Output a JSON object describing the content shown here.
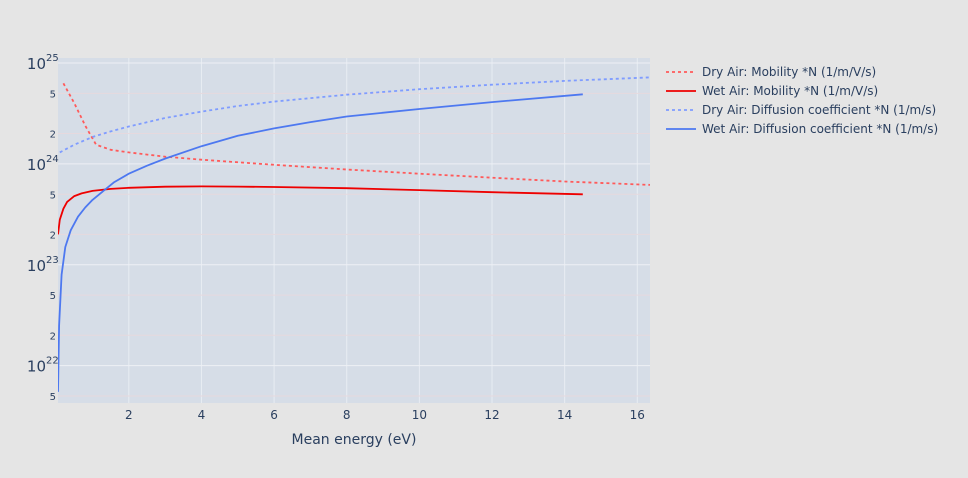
{
  "chart_data": {
    "type": "line",
    "title": "",
    "xlabel": "Mean energy (eV)",
    "ylabel": "",
    "xlim": [
      0.05,
      16.35
    ],
    "ylim_log10": [
      21.63,
      25.05
    ],
    "y_scale": "log",
    "grid": true,
    "legend_position": "top-right",
    "background": "#e5e5e5",
    "plot_bg": "#d6dde7",
    "x_ticks": [
      2,
      4,
      6,
      8,
      10,
      12,
      14,
      16
    ],
    "y_major_ticks": [
      {
        "value": 1e+22,
        "base": "10",
        "exp": "22"
      },
      {
        "value": 1e+23,
        "base": "10",
        "exp": "23"
      },
      {
        "value": 1e+24,
        "base": "10",
        "exp": "24"
      },
      {
        "value": 1e+25,
        "base": "10",
        "exp": "25"
      }
    ],
    "y_minor_ticks": [
      {
        "value": 5e+21,
        "label": "5"
      },
      {
        "value": 2e+22,
        "label": "2"
      },
      {
        "value": 5e+22,
        "label": "5"
      },
      {
        "value": 2e+23,
        "label": "2"
      },
      {
        "value": 5e+23,
        "label": "5"
      },
      {
        "value": 2e+24,
        "label": "2"
      },
      {
        "value": 5e+24,
        "label": "5"
      }
    ],
    "series": [
      {
        "name": "Dry Air: Mobility *N (1/m/V/s)",
        "color": "#ff5a5a",
        "dash": "dot",
        "x": [
          0.2,
          0.5,
          0.8,
          1.1,
          1.5,
          2,
          3,
          4,
          6,
          8,
          10,
          12,
          14,
          16.35
        ],
        "y": [
          6.3e+24,
          4e+24,
          2.4e+24,
          1.55e+24,
          1.38e+24,
          1.3e+24,
          1.18e+24,
          1.1e+24,
          9.8e+23,
          8.8e+23,
          8e+23,
          7.3e+23,
          6.7e+23,
          6.2e+23
        ]
      },
      {
        "name": "Wet Air: Mobility *N (1/m/V/s)",
        "color": "#ee0000",
        "dash": "solid",
        "x": [
          0.05,
          0.1,
          0.2,
          0.3,
          0.5,
          0.7,
          1,
          1.5,
          2,
          3,
          4,
          5,
          6,
          8,
          10,
          12,
          14.5
        ],
        "y": [
          2e+23,
          2.8e+23,
          3.6e+23,
          4.2e+23,
          4.8e+23,
          5.1e+23,
          5.4e+23,
          5.65e+23,
          5.8e+23,
          5.95e+23,
          5.98e+23,
          5.96e+23,
          5.9e+23,
          5.75e+23,
          5.5e+23,
          5.25e+23,
          5e+23
        ]
      },
      {
        "name": "Dry Air: Diffusion coefficient *N (1/m/s)",
        "color": "#7f9cff",
        "dash": "dot",
        "x": [
          0.1,
          0.5,
          1,
          1.5,
          2,
          3,
          4,
          5,
          6,
          8,
          10,
          12,
          14,
          16.35
        ],
        "y": [
          1.3e+24,
          1.55e+24,
          1.85e+24,
          2.1e+24,
          2.35e+24,
          2.85e+24,
          3.3e+24,
          3.75e+24,
          4.15e+24,
          4.85e+24,
          5.5e+24,
          6.1e+24,
          6.65e+24,
          7.2e+24
        ]
      },
      {
        "name": "Wet Air: Diffusion coefficient *N (1/m/s)",
        "color": "#4d78f0",
        "dash": "solid",
        "x": [
          0.05,
          0.08,
          0.15,
          0.25,
          0.4,
          0.6,
          0.8,
          1,
          1.3,
          1.6,
          2,
          2.5,
          3,
          4,
          5,
          6,
          7,
          8,
          10,
          12,
          14.5
        ],
        "y": [
          5.5e+21,
          2.5e+22,
          8e+22,
          1.5e+23,
          2.2e+23,
          3e+23,
          3.7e+23,
          4.4e+23,
          5.4e+23,
          6.6e+23,
          8e+23,
          9.6e+23,
          1.13e+24,
          1.5e+24,
          1.9e+24,
          2.25e+24,
          2.6e+24,
          2.95e+24,
          3.5e+24,
          4.1e+24,
          4.9e+24
        ]
      }
    ]
  }
}
